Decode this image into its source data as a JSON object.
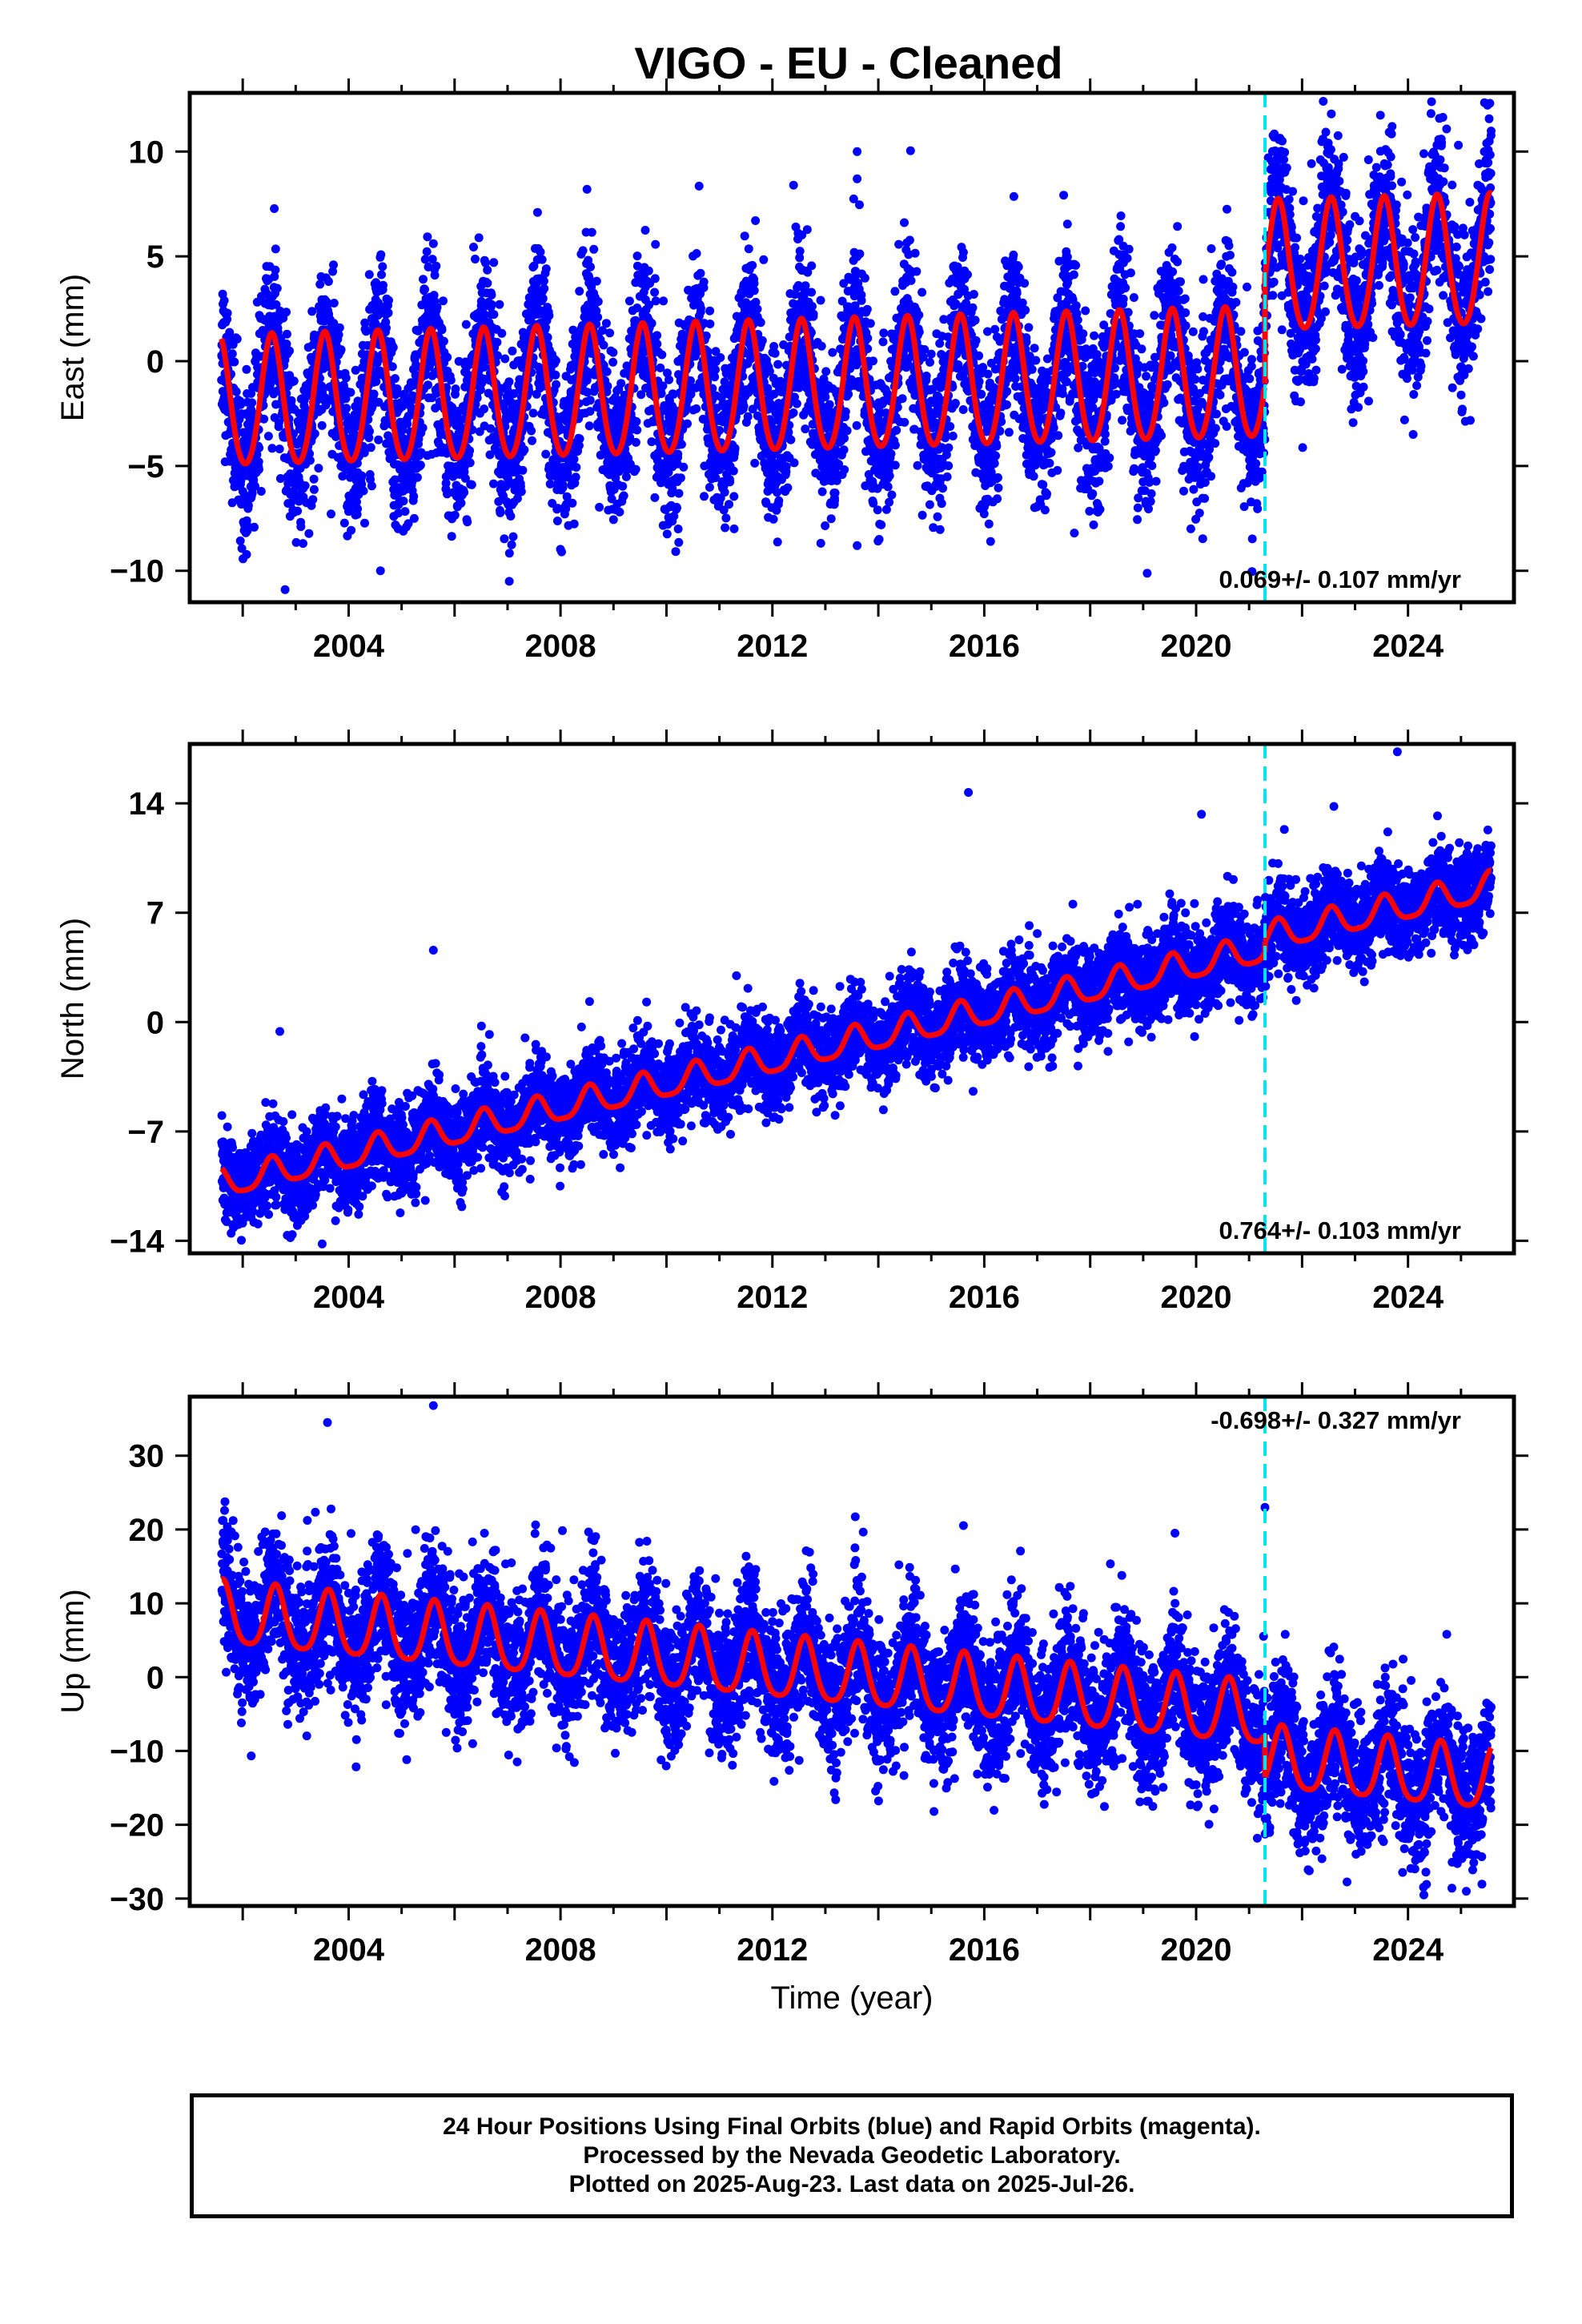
{
  "title": "VIGO  - EU - Cleaned",
  "footer": {
    "line1": "24 Hour Positions Using Final Orbits (blue) and Rapid Orbits (magenta).",
    "line2": "Processed by the Nevada Geodetic Laboratory.",
    "line3": "Plotted on 2025-Aug-23. Last data on 2025-Jul-26."
  },
  "colors": {
    "points": "#0000ff",
    "model": "#ff0000",
    "event_line": "#00e5ee"
  },
  "chart_data": [
    {
      "type": "scatter",
      "ylabel": "East (mm)",
      "rate_label": "0.069+/- 0.107 mm/yr",
      "rate_position": "bottom-right",
      "xlim": [
        2001.0,
        2026.0
      ],
      "ylim": [
        -11.5,
        12.8
      ],
      "xticks": [
        "2004",
        "2008",
        "2012",
        "2016",
        "2020",
        "2024"
      ],
      "yticks": [
        "10",
        "5",
        "0",
        "−5",
        "−10"
      ],
      "yticks_values": [
        10,
        5,
        0,
        -5,
        -10
      ],
      "data_start": 2001.6,
      "data_end": 2025.57,
      "event_epoch": 2021.3,
      "model": {
        "offset_before": -1.3,
        "offset_after": 3.8,
        "rate": 0.069,
        "ref_year": 2013.5,
        "annual_amplitude": 3.1,
        "semiannual_amplitude": 0.3,
        "phase_peak_fraction": 0.55
      },
      "scatter_sigma": 1.9,
      "outliers": [
        [
          2012.4,
          8.4
        ],
        [
          2013.6,
          10.0
        ],
        [
          2013.6,
          8.7
        ],
        [
          2008.5,
          8.2
        ],
        [
          2022.4,
          12.4
        ],
        [
          2023.7,
          11.2
        ],
        [
          2024.3,
          9.9
        ],
        [
          2002.8,
          -10.9
        ],
        [
          2013.6,
          -8.8
        ],
        [
          2017.7,
          -8.2
        ],
        [
          2019.9,
          -8.0
        ],
        [
          2004.6,
          -10.0
        ]
      ]
    },
    {
      "type": "scatter",
      "ylabel": "North (mm)",
      "rate_label": "0.764+/- 0.103 mm/yr",
      "rate_position": "bottom-right",
      "xlim": [
        2001.0,
        2026.0
      ],
      "ylim": [
        -14.8,
        17.8
      ],
      "xticks": [
        "2004",
        "2008",
        "2012",
        "2016",
        "2020",
        "2024"
      ],
      "yticks": [
        "14",
        "7",
        "0",
        "−7",
        "−14"
      ],
      "yticks_values": [
        14,
        7,
        0,
        -7,
        -14
      ],
      "data_start": 2001.6,
      "data_end": 2025.57,
      "event_epoch": 2021.3,
      "model": {
        "offset_before": -1.3,
        "offset_after": -0.6,
        "rate": 0.764,
        "ref_year": 2013.5,
        "annual_amplitude": 0.9,
        "semiannual_amplitude": 0.2,
        "phase_peak_fraction": 0.55
      },
      "scatter_sigma": 1.4,
      "outliers": [
        [
          2015.7,
          14.7
        ],
        [
          2023.8,
          17.3
        ],
        [
          2005.6,
          4.6
        ],
        [
          2002.7,
          -0.6
        ],
        [
          2002.9,
          -13.8
        ],
        [
          2003.5,
          -14.2
        ],
        [
          2022.6,
          13.8
        ],
        [
          2020.1,
          13.3
        ]
      ]
    },
    {
      "type": "scatter",
      "xlabel": "Time (year)",
      "ylabel": "Up (mm)",
      "rate_label": "-0.698+/- 0.327 mm/yr",
      "rate_position": "top-right",
      "xlim": [
        2001.0,
        2026.0
      ],
      "ylim": [
        -31.0,
        38.0
      ],
      "xticks": [
        "2004",
        "2008",
        "2012",
        "2016",
        "2020",
        "2024"
      ],
      "yticks": [
        "30",
        "20",
        "10",
        "0",
        "−10",
        "−20",
        "−30"
      ],
      "yticks_values": [
        30,
        20,
        10,
        0,
        -10,
        -20,
        -30
      ],
      "data_start": 2001.6,
      "data_end": 2025.57,
      "event_epoch": 2021.3,
      "model": {
        "offset_before": 0.0,
        "offset_after": -5.8,
        "rate": -0.698,
        "ref_year": 2013.5,
        "annual_amplitude": 4.2,
        "semiannual_amplitude": 0.8,
        "phase_peak_fraction": 0.62
      },
      "scatter_sigma": 4.5,
      "outliers": [
        [
          2003.6,
          34.5
        ],
        [
          2005.6,
          36.8
        ],
        [
          2021.3,
          23.0
        ],
        [
          2019.6,
          19.5
        ],
        [
          2024.3,
          -29.5
        ],
        [
          2025.1,
          -29.0
        ]
      ]
    }
  ]
}
